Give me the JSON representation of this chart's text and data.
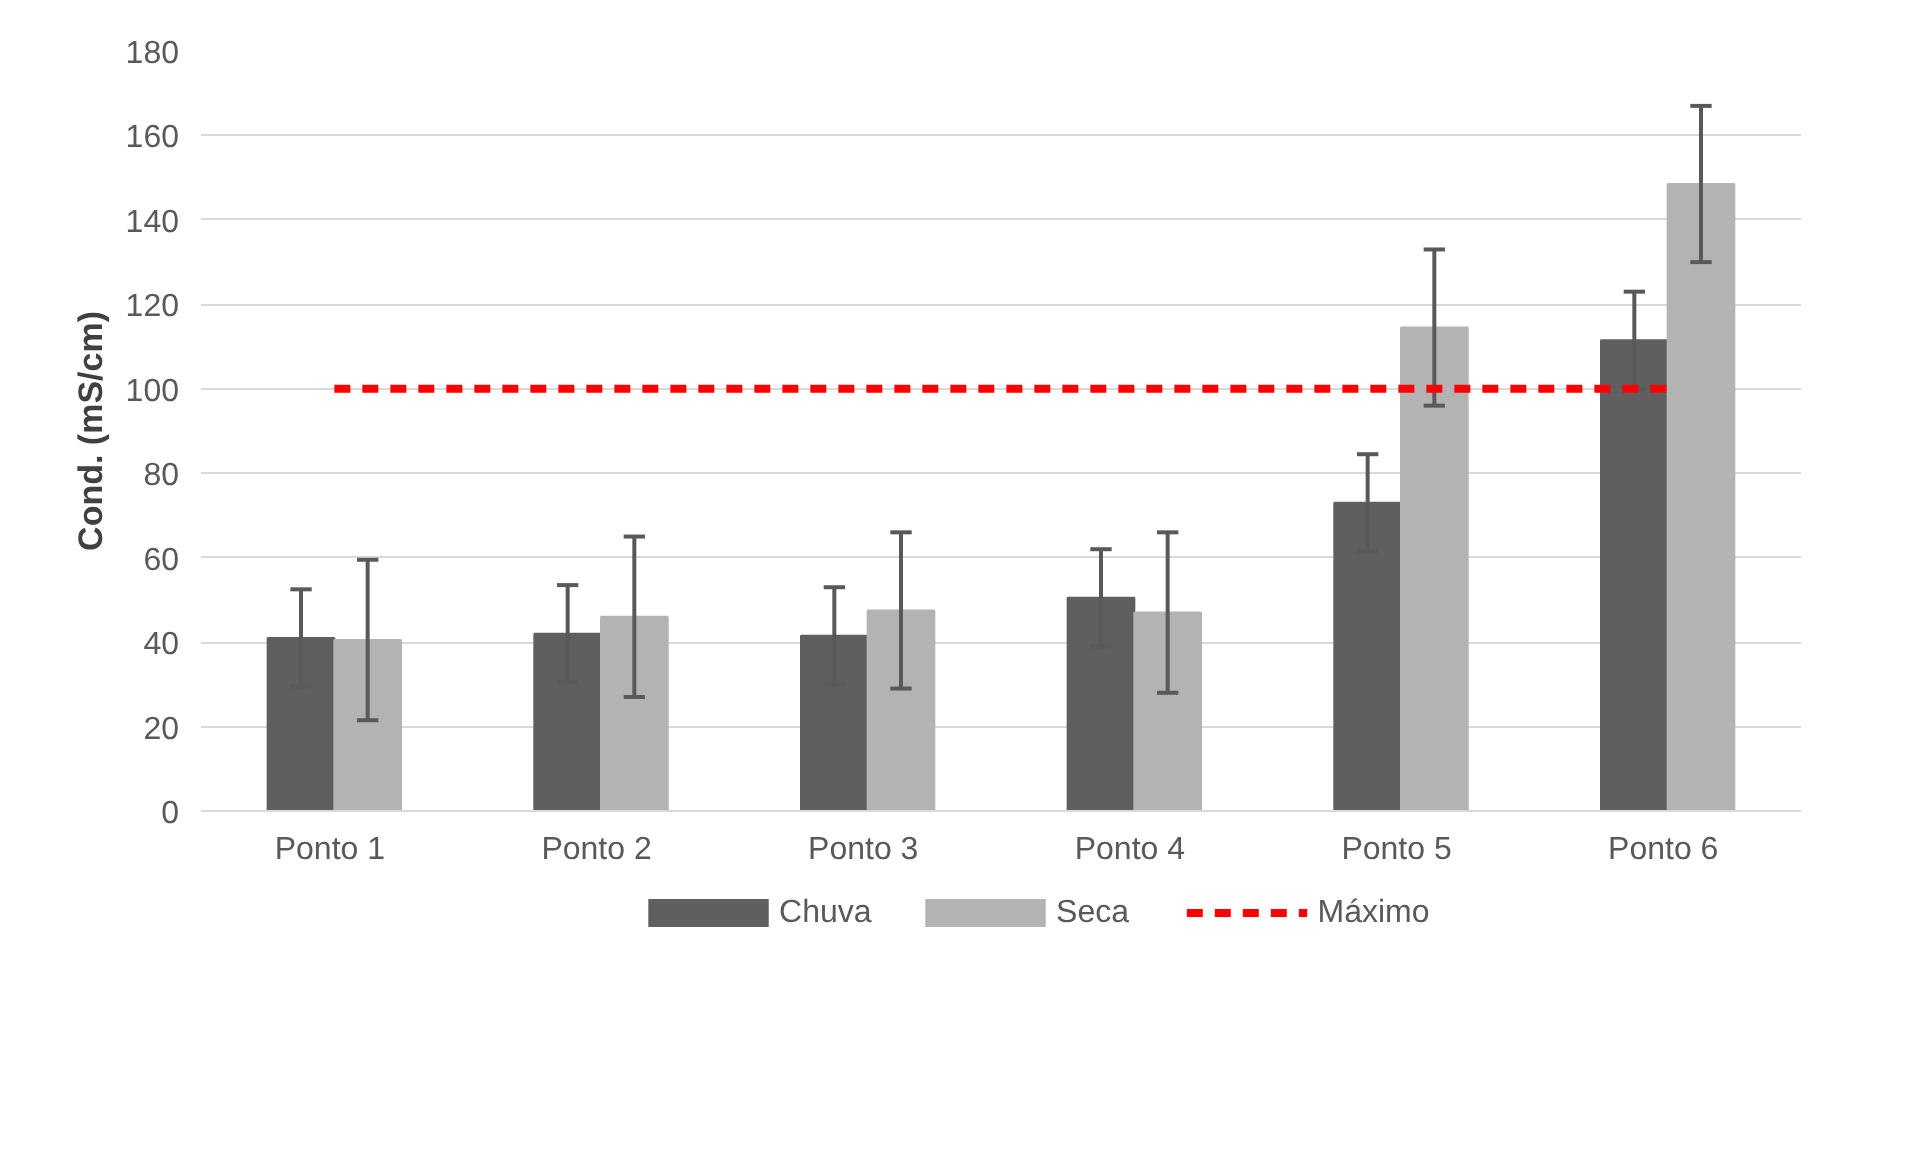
{
  "chart_data": {
    "type": "bar",
    "ylabel": "Cond. (mS/cm)",
    "categories": [
      "Ponto  1",
      "Ponto  2",
      "Ponto  3",
      "Ponto  4",
      "Ponto  5",
      "Ponto  6"
    ],
    "series": [
      {
        "name": "Chuva",
        "color": "#5f5f5f",
        "values": [
          41,
          42,
          41.5,
          50.5,
          73,
          111.5
        ],
        "errors": [
          11.5,
          11.5,
          11.5,
          11.5,
          11.5,
          11.5
        ]
      },
      {
        "name": "Seca",
        "color": "#b3b3b3",
        "values": [
          40.5,
          46,
          47.5,
          47,
          114.5,
          148.5
        ],
        "errors": [
          19,
          19,
          18.5,
          19,
          18.5,
          18.5
        ]
      },
      {
        "name": "Máximo",
        "type": "line",
        "color": "#ff0000",
        "line_style": "dashed",
        "marker": "none",
        "values": [
          100,
          100,
          100,
          100,
          100,
          100
        ]
      }
    ],
    "ylim": [
      0,
      180
    ],
    "yticks": [
      0,
      20,
      40,
      60,
      80,
      100,
      120,
      140,
      160,
      180
    ],
    "grid": "y",
    "legend": "bottom"
  }
}
